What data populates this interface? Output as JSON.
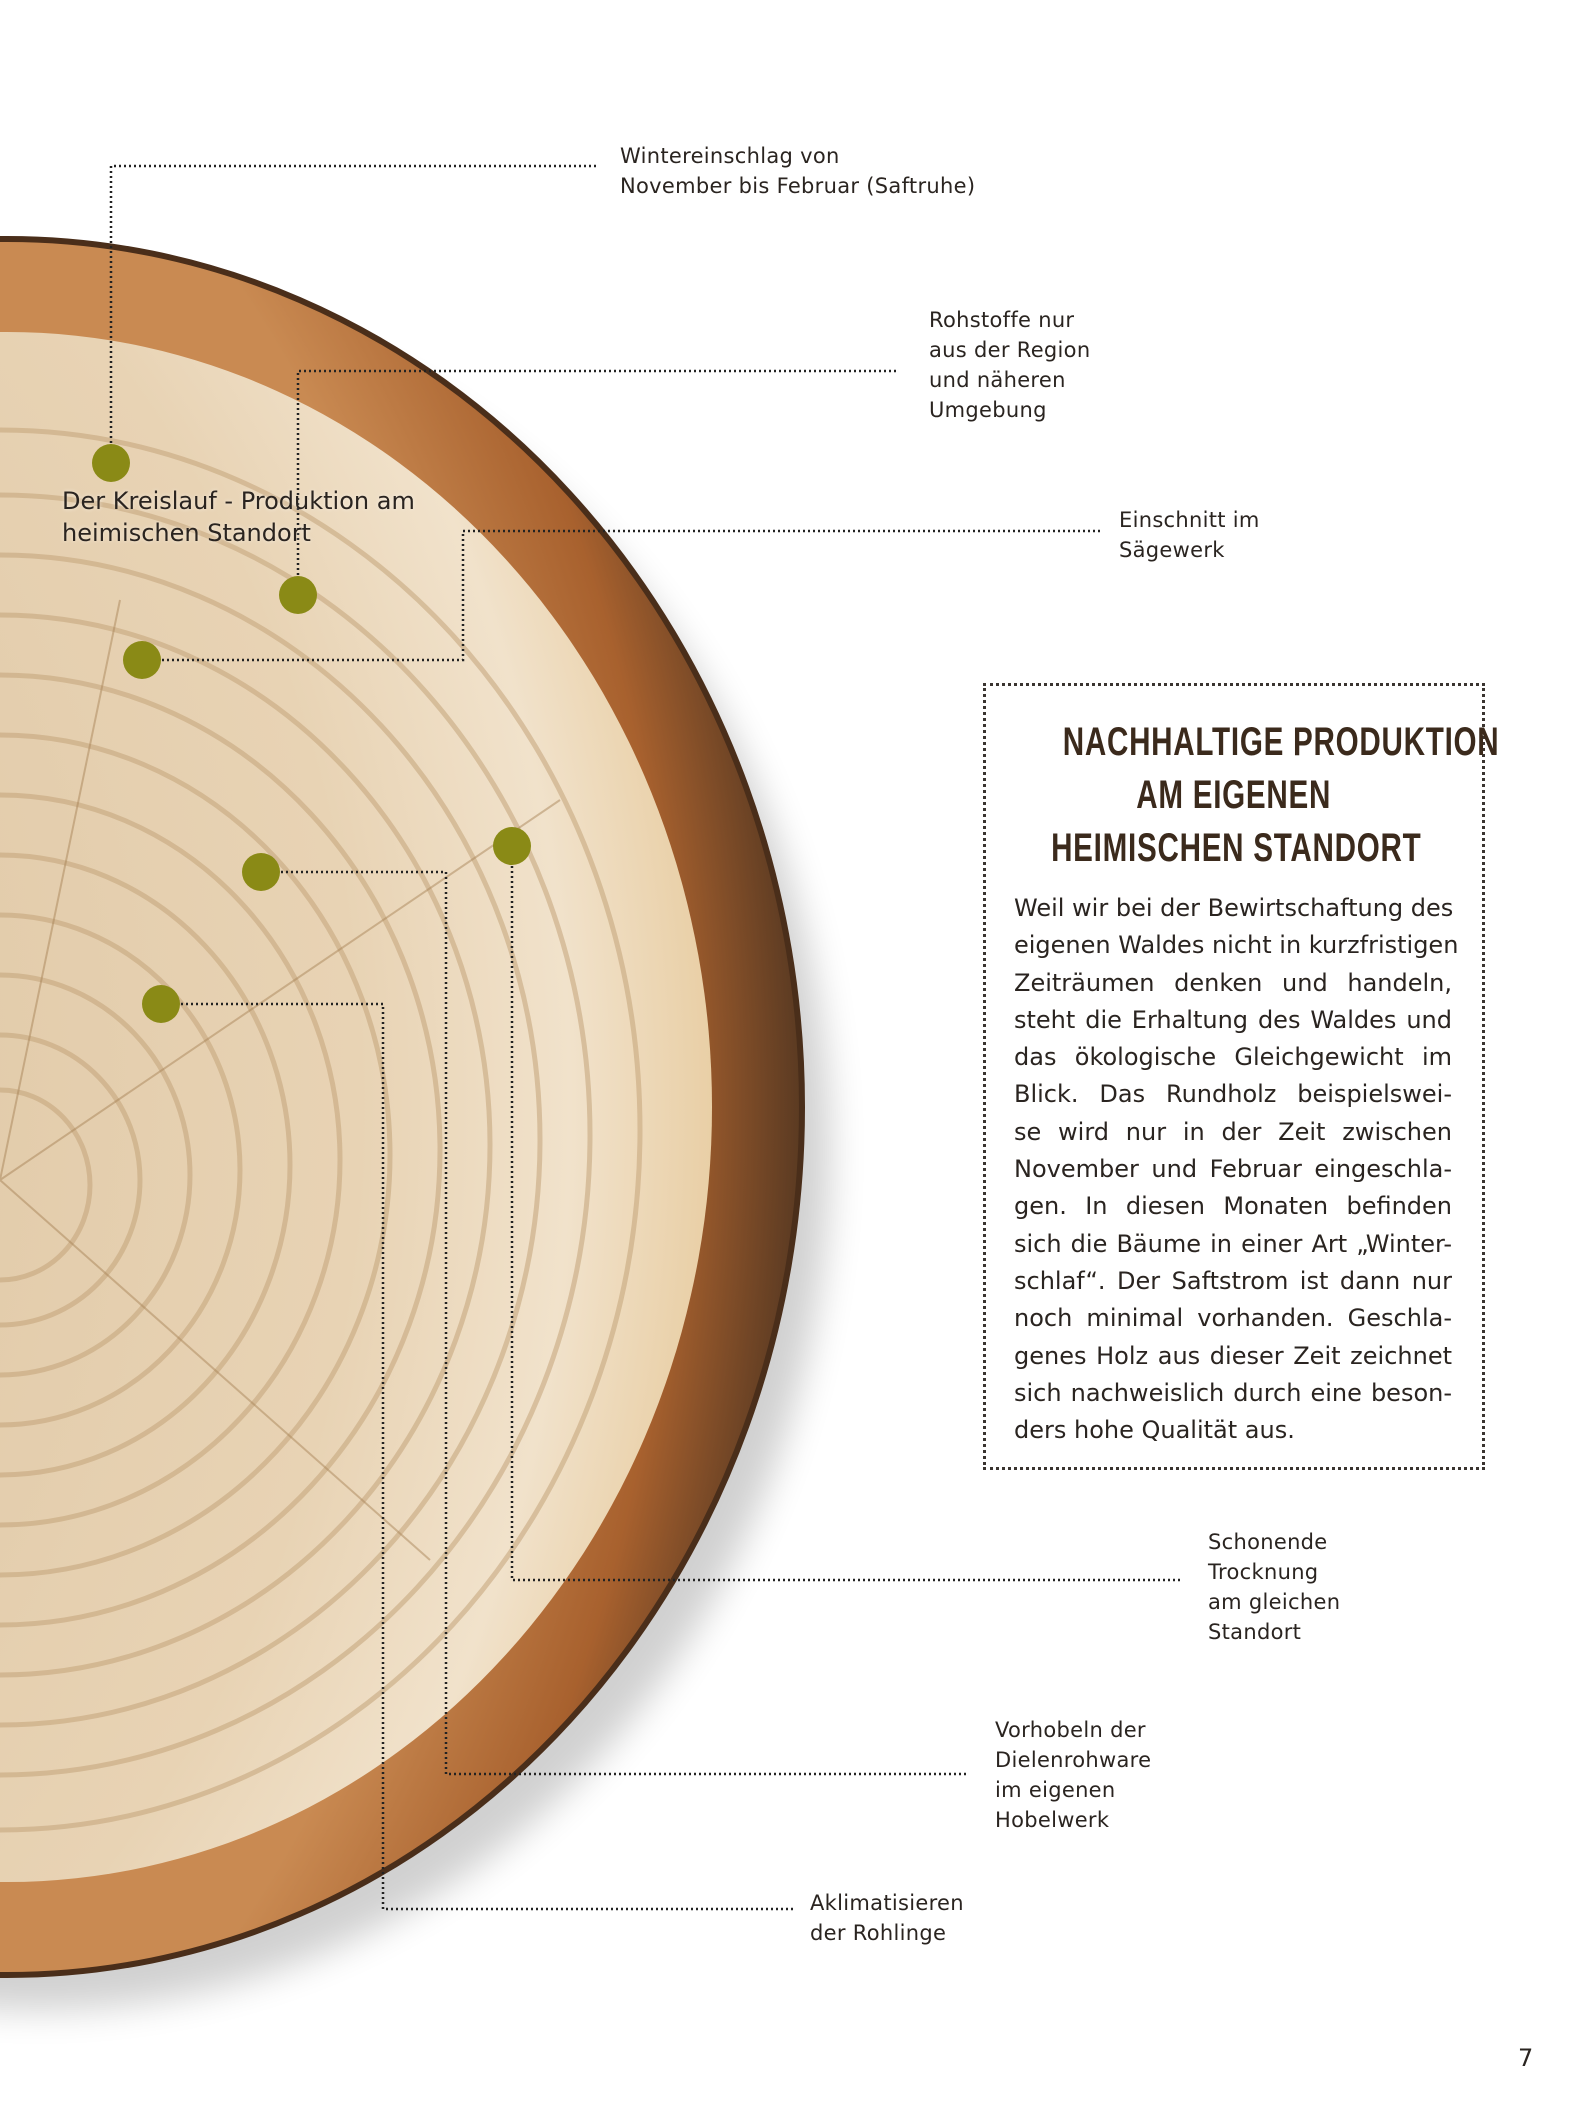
{
  "callouts": [
    {
      "lines": [
        "Wintereinschlag von",
        "November bis Februar (Saftruhe)"
      ]
    },
    {
      "lines": [
        "Rohstoffe nur",
        "aus der Region",
        "und näheren",
        "Umgebung"
      ]
    },
    {
      "lines": [
        "Einschnitt im",
        "Sägewerk"
      ]
    },
    {
      "lines": [
        "Schonende",
        "Trocknung",
        "am gleichen",
        "Standort"
      ]
    },
    {
      "lines": [
        "Vorhobeln der",
        "Dielenrohware",
        "im eigenen",
        "Hobelwerk"
      ]
    },
    {
      "lines": [
        "Aklimatisieren",
        "der Rohlinge"
      ]
    }
  ],
  "cycle_label": {
    "lines": [
      "Der Kreislauf - Produktion am",
      "heimischen Standort"
    ]
  },
  "info_box": {
    "title_lines": [
      "NACHHALTIGE PRODUKTION",
      "AM EIGENEN",
      "HEIMISCHEN STANDORT"
    ],
    "body_lines": [
      "Weil wir bei der Bewirtschaftung des",
      "eigenen Waldes nicht in kurzfristigen",
      "Zeiträumen denken und handeln,",
      "steht die Erhaltung des Waldes und",
      "das ökologische Gleichgewicht im",
      "Blick. Das Rundholz beispielswei-",
      "se wird nur in der Zeit zwischen",
      "November und Februar eingeschla-",
      "gen. In diesen Monaten befinden",
      "sich die Bäume in einer Art „Winter-",
      "schlaf“. Der Saftstrom ist dann nur",
      "noch minimal vorhanden. Geschla-",
      "genes Holz aus dieser Zeit zeichnet",
      "sich nachweislich durch eine beson-",
      "ders hohe Qualität aus."
    ]
  },
  "page_number": "7"
}
